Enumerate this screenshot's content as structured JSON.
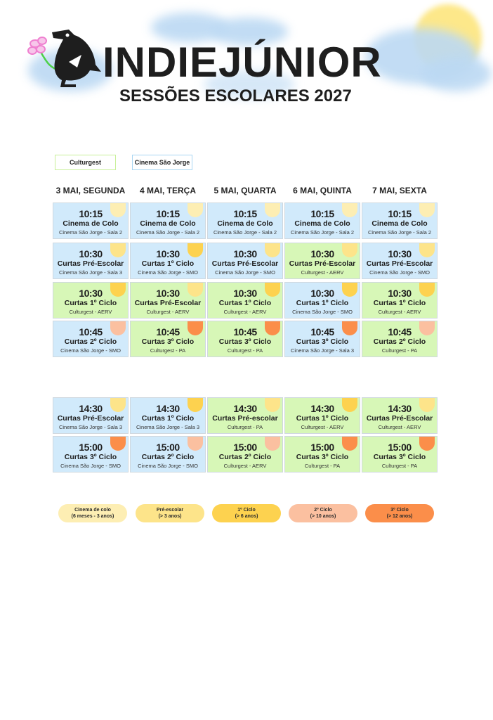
{
  "header": {
    "brand": "INDIEJÚNIOR",
    "subtitle": "SESSÕES ESCOLARES 2027"
  },
  "legend_venues": [
    {
      "label": "Culturgest",
      "color": "#c9f09a"
    },
    {
      "label": "Cinema São Jorge",
      "color": "#a9d6f2"
    }
  ],
  "days": [
    "3 MAI, SEGUNDA",
    "4 MAI, TERÇA",
    "5 MAI, QUARTA",
    "6 MAI, QUINTA",
    "7 MAI, SEXTA"
  ],
  "colors": {
    "sao_jorge_bg": "#d1eafb",
    "culturgest_bg": "#d7f7b7",
    "colo": "#fdeeb3",
    "pre": "#fde48a",
    "c1": "#fdd24f",
    "c2": "#fbc0a0",
    "c3": "#fb8e4a"
  },
  "morning": [
    [
      {
        "time": "10:15",
        "title": "Cinema de Colo",
        "place": "Cinema São Jorge - Sala 2",
        "venue": "sj",
        "level": "colo"
      },
      {
        "time": "10:30",
        "title": "Curtas Pré-Escolar",
        "place": "Cinema São Jorge - Sala 3",
        "venue": "sj",
        "level": "pre"
      },
      {
        "time": "10:30",
        "title": "Curtas 1º Ciclo",
        "place": "Culturgest - AERV",
        "venue": "cg",
        "level": "c1"
      },
      {
        "time": "10:45",
        "title": "Curtas 2º Ciclo",
        "place": "Cinema São Jorge - SMO",
        "venue": "sj",
        "level": "c2"
      }
    ],
    [
      {
        "time": "10:15",
        "title": "Cinema de Colo",
        "place": "Cinema São Jorge - Sala 2",
        "venue": "sj",
        "level": "colo"
      },
      {
        "time": "10:30",
        "title": "Curtas 1º Ciclo",
        "place": "Cinema São Jorge - SMO",
        "venue": "sj",
        "level": "c1"
      },
      {
        "time": "10:30",
        "title": "Curtas Pré-Escolar",
        "place": "Culturgest - AERV",
        "venue": "cg",
        "level": "pre"
      },
      {
        "time": "10:45",
        "title": "Curtas 3º Ciclo",
        "place": "Culturgest - PA",
        "venue": "cg",
        "level": "c3"
      }
    ],
    [
      {
        "time": "10:15",
        "title": "Cinema de Colo",
        "place": "Cinema São Jorge - Sala 2",
        "venue": "sj",
        "level": "colo"
      },
      {
        "time": "10:30",
        "title": "Curtas Pré-Escolar",
        "place": "Cinema São Jorge - SMO",
        "venue": "sj",
        "level": "pre"
      },
      {
        "time": "10:30",
        "title": "Curtas 1º Ciclo",
        "place": "Culturgest - AERV",
        "venue": "cg",
        "level": "c1"
      },
      {
        "time": "10:45",
        "title": "Curtas 3º Ciclo",
        "place": "Culturgest - PA",
        "venue": "cg",
        "level": "c3"
      }
    ],
    [
      {
        "time": "10:15",
        "title": "Cinema de Colo",
        "place": "Cinema São Jorge - Sala 2",
        "venue": "sj",
        "level": "colo"
      },
      {
        "time": "10:30",
        "title": "Curtas Pré-Escolar",
        "place": "Culturgest - AERV",
        "venue": "cg",
        "level": "pre"
      },
      {
        "time": "10:30",
        "title": "Curtas 1º Ciclo",
        "place": "Cinema São Jorge - SMO",
        "venue": "sj",
        "level": "c1"
      },
      {
        "time": "10:45",
        "title": "Curtas 3º Ciclo",
        "place": "Cinema São Jorge - Sala 3",
        "venue": "sj",
        "level": "c3"
      }
    ],
    [
      {
        "time": "10:15",
        "title": "Cinema de Colo",
        "place": "Cinema São Jorge - Sala 2",
        "venue": "sj",
        "level": "colo"
      },
      {
        "time": "10:30",
        "title": "Curtas Pré-Escolar",
        "place": "Cinema São Jorge - SMO",
        "venue": "sj",
        "level": "pre"
      },
      {
        "time": "10:30",
        "title": "Curtas 1º Ciclo",
        "place": "Culturgest - AERV",
        "venue": "cg",
        "level": "c1"
      },
      {
        "time": "10:45",
        "title": "Curtas 2º Ciclo",
        "place": "Culturgest - PA",
        "venue": "cg",
        "level": "c2"
      }
    ]
  ],
  "afternoon": [
    [
      {
        "time": "14:30",
        "title": "Curtas Pré-Escolar",
        "place": "Cinema São Jorge - Sala 3",
        "venue": "sj",
        "level": "pre"
      },
      {
        "time": "15:00",
        "title": "Curtas 3º Ciclo",
        "place": "Cinema São Jorge - SMO",
        "venue": "sj",
        "level": "c3"
      }
    ],
    [
      {
        "time": "14:30",
        "title": "Curtas 1º Ciclo",
        "place": "Cinema São Jorge - Sala 3",
        "venue": "sj",
        "level": "c1"
      },
      {
        "time": "15:00",
        "title": "Curtas 2º Ciclo",
        "place": "Cinema São Jorge - SMO",
        "venue": "sj",
        "level": "c2"
      }
    ],
    [
      {
        "time": "14:30",
        "title": "Curtas Pré-escolar",
        "place": "Culturgest - PA",
        "venue": "cg",
        "level": "pre"
      },
      {
        "time": "15:00",
        "title": "Curtas 2º Ciclo",
        "place": "Culturgest - AERV",
        "venue": "cg",
        "level": "c2"
      }
    ],
    [
      {
        "time": "14:30",
        "title": "Curtas 1º Ciclo",
        "place": "Culturgest - AERV",
        "venue": "cg",
        "level": "c1"
      },
      {
        "time": "15:00",
        "title": "Curtas 3º Ciclo",
        "place": "Culturgest - PA",
        "venue": "cg",
        "level": "c3"
      }
    ],
    [
      {
        "time": "14:30",
        "title": "Curtas Pré-Escolar",
        "place": "Culturgest - AERV",
        "venue": "cg",
        "level": "pre"
      },
      {
        "time": "15:00",
        "title": "Curtas 3º Ciclo",
        "place": "Culturgest - PA",
        "venue": "cg",
        "level": "c3"
      }
    ]
  ],
  "age_legend": [
    {
      "name": "Cinema de colo",
      "ages": "(6 meses - 3 anos)",
      "level": "colo"
    },
    {
      "name": "Pré-escolar",
      "ages": "(> 3 anos)",
      "level": "pre"
    },
    {
      "name": "1º Ciclo",
      "ages": "(> 6 anos)",
      "level": "c1"
    },
    {
      "name": "2º Ciclo",
      "ages": "(> 10 anos)",
      "level": "c2"
    },
    {
      "name": "3º Ciclo",
      "ages": "(> 12 anos)",
      "level": "c3"
    }
  ]
}
